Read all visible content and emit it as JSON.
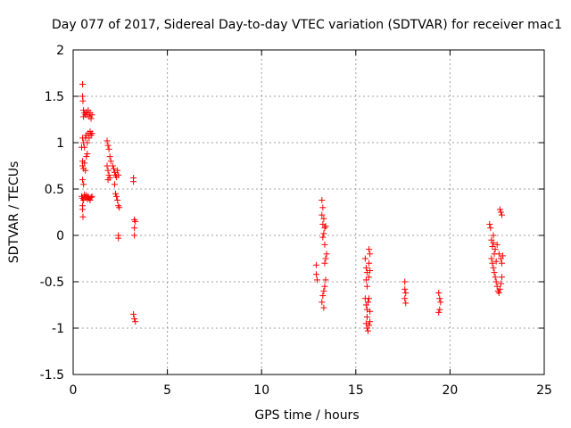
{
  "chart_data": {
    "type": "scatter",
    "title": "Day 077 of 2017, Sidereal Day-to-day VTEC variation (SDTVAR) for receiver mac1",
    "xlabel": "GPS time / hours",
    "ylabel": "SDTVAR / TECUs",
    "xlim": [
      0,
      25
    ],
    "ylim": [
      -1.5,
      2
    ],
    "xticks": [
      0,
      5,
      10,
      15,
      20,
      25
    ],
    "xtick_labels": [
      "0",
      "5",
      "10",
      "15",
      "20",
      "25"
    ],
    "yticks": [
      -1.5,
      -1,
      -0.5,
      0,
      0.5,
      1,
      1.5,
      2
    ],
    "ytick_labels": [
      "-1.5",
      "-1",
      "-0.5",
      "0",
      "0.5",
      "1",
      "1.5",
      "2"
    ],
    "grid": true,
    "marker": "+",
    "marker_color": "#ff0000",
    "series": [
      {
        "name": "SDTVAR",
        "points": [
          [
            0.5,
            1.63
          ],
          [
            0.5,
            1.5
          ],
          [
            0.52,
            1.45
          ],
          [
            0.55,
            1.35
          ],
          [
            0.55,
            1.28
          ],
          [
            0.6,
            1.32
          ],
          [
            0.65,
            1.3
          ],
          [
            0.7,
            1.33
          ],
          [
            0.75,
            1.3
          ],
          [
            0.8,
            1.35
          ],
          [
            0.85,
            1.28
          ],
          [
            0.9,
            1.32
          ],
          [
            0.95,
            1.26
          ],
          [
            1.0,
            1.3
          ],
          [
            0.5,
            1.05
          ],
          [
            0.55,
            1.0
          ],
          [
            0.6,
            0.95
          ],
          [
            0.65,
            1.05
          ],
          [
            0.7,
            1.08
          ],
          [
            0.75,
            1.0
          ],
          [
            0.8,
            1.1
          ],
          [
            0.85,
            1.05
          ],
          [
            0.9,
            1.12
          ],
          [
            0.95,
            1.08
          ],
          [
            1.0,
            1.1
          ],
          [
            0.45,
            0.95
          ],
          [
            0.5,
            0.8
          ],
          [
            0.5,
            0.75
          ],
          [
            0.55,
            0.72
          ],
          [
            0.6,
            0.78
          ],
          [
            0.65,
            0.7
          ],
          [
            0.7,
            0.85
          ],
          [
            0.75,
            0.88
          ],
          [
            0.5,
            0.6
          ],
          [
            0.55,
            0.55
          ],
          [
            0.45,
            0.42
          ],
          [
            0.5,
            0.4
          ],
          [
            0.55,
            0.38
          ],
          [
            0.6,
            0.44
          ],
          [
            0.65,
            0.41
          ],
          [
            0.7,
            0.43
          ],
          [
            0.75,
            0.39
          ],
          [
            0.8,
            0.42
          ],
          [
            0.85,
            0.4
          ],
          [
            0.9,
            0.38
          ],
          [
            0.95,
            0.41
          ],
          [
            1.0,
            0.42
          ],
          [
            0.5,
            0.32
          ],
          [
            0.5,
            0.28
          ],
          [
            0.52,
            0.2
          ],
          [
            1.8,
            1.02
          ],
          [
            1.85,
            0.97
          ],
          [
            1.9,
            0.93
          ],
          [
            1.95,
            0.85
          ],
          [
            2.0,
            0.8
          ],
          [
            1.8,
            0.75
          ],
          [
            1.85,
            0.7
          ],
          [
            1.9,
            0.65
          ],
          [
            1.95,
            0.62
          ],
          [
            1.85,
            0.6
          ],
          [
            2.1,
            0.75
          ],
          [
            2.15,
            0.72
          ],
          [
            2.2,
            0.68
          ],
          [
            2.25,
            0.65
          ],
          [
            2.3,
            0.63
          ],
          [
            2.35,
            0.7
          ],
          [
            2.4,
            0.65
          ],
          [
            2.2,
            0.55
          ],
          [
            2.25,
            0.45
          ],
          [
            2.3,
            0.42
          ],
          [
            2.35,
            0.38
          ],
          [
            2.4,
            0.32
          ],
          [
            2.45,
            0.3
          ],
          [
            2.4,
            0.0
          ],
          [
            2.4,
            -0.03
          ],
          [
            3.2,
            0.62
          ],
          [
            3.2,
            0.58
          ],
          [
            3.25,
            0.17
          ],
          [
            3.3,
            0.15
          ],
          [
            3.25,
            0.08
          ],
          [
            3.25,
            0.0
          ],
          [
            3.2,
            -0.85
          ],
          [
            3.25,
            -0.9
          ],
          [
            3.3,
            -0.93
          ],
          [
            12.9,
            -0.32
          ],
          [
            12.9,
            -0.42
          ],
          [
            12.95,
            -0.48
          ],
          [
            13.2,
            0.38
          ],
          [
            13.25,
            0.3
          ],
          [
            13.2,
            0.22
          ],
          [
            13.3,
            0.18
          ],
          [
            13.25,
            0.12
          ],
          [
            13.35,
            0.08
          ],
          [
            13.3,
            0.02
          ],
          [
            13.25,
            -0.02
          ],
          [
            13.35,
            -0.1
          ],
          [
            13.4,
            -0.25
          ],
          [
            13.35,
            -0.3
          ],
          [
            13.4,
            -0.48
          ],
          [
            13.35,
            -0.55
          ],
          [
            13.3,
            -0.6
          ],
          [
            13.25,
            -0.65
          ],
          [
            13.2,
            -0.72
          ],
          [
            13.3,
            -0.78
          ],
          [
            13.4,
            0.1
          ],
          [
            13.45,
            -0.2
          ],
          [
            15.5,
            -0.25
          ],
          [
            15.55,
            -0.35
          ],
          [
            15.6,
            -0.4
          ],
          [
            15.55,
            -0.48
          ],
          [
            15.6,
            -0.55
          ],
          [
            15.7,
            -0.15
          ],
          [
            15.75,
            -0.2
          ],
          [
            15.7,
            -0.3
          ],
          [
            15.75,
            -0.38
          ],
          [
            15.7,
            -0.45
          ],
          [
            15.5,
            -0.68
          ],
          [
            15.55,
            -0.75
          ],
          [
            15.6,
            -0.8
          ],
          [
            15.65,
            -0.72
          ],
          [
            15.7,
            -0.68
          ],
          [
            15.75,
            -0.82
          ],
          [
            15.6,
            -0.88
          ],
          [
            15.55,
            -0.95
          ],
          [
            15.6,
            -1.0
          ],
          [
            15.65,
            -1.03
          ],
          [
            15.7,
            -0.97
          ],
          [
            15.75,
            -0.93
          ],
          [
            17.6,
            -0.5
          ],
          [
            17.6,
            -0.58
          ],
          [
            17.65,
            -0.62
          ],
          [
            17.6,
            -0.68
          ],
          [
            17.65,
            -0.73
          ],
          [
            19.4,
            -0.62
          ],
          [
            19.45,
            -0.68
          ],
          [
            19.5,
            -0.72
          ],
          [
            19.45,
            -0.8
          ],
          [
            19.4,
            -0.83
          ],
          [
            22.1,
            0.12
          ],
          [
            22.15,
            0.08
          ],
          [
            22.2,
            -0.05
          ],
          [
            22.25,
            -0.12
          ],
          [
            22.3,
            -0.08
          ],
          [
            22.35,
            -0.2
          ],
          [
            22.2,
            -0.25
          ],
          [
            22.25,
            -0.3
          ],
          [
            22.3,
            -0.35
          ],
          [
            22.35,
            -0.4
          ],
          [
            22.4,
            -0.45
          ],
          [
            22.45,
            -0.5
          ],
          [
            22.5,
            -0.55
          ],
          [
            22.55,
            -0.6
          ],
          [
            22.6,
            -0.62
          ],
          [
            22.65,
            -0.58
          ],
          [
            22.7,
            -0.52
          ],
          [
            22.75,
            -0.45
          ],
          [
            22.4,
            -0.15
          ],
          [
            22.5,
            -0.1
          ],
          [
            22.6,
            -0.2
          ],
          [
            22.7,
            -0.25
          ],
          [
            22.75,
            -0.3
          ],
          [
            22.8,
            -0.22
          ],
          [
            22.65,
            0.28
          ],
          [
            22.7,
            0.25
          ],
          [
            22.75,
            0.22
          ],
          [
            22.3,
            0.0
          ],
          [
            22.45,
            -0.28
          ]
        ]
      }
    ]
  }
}
